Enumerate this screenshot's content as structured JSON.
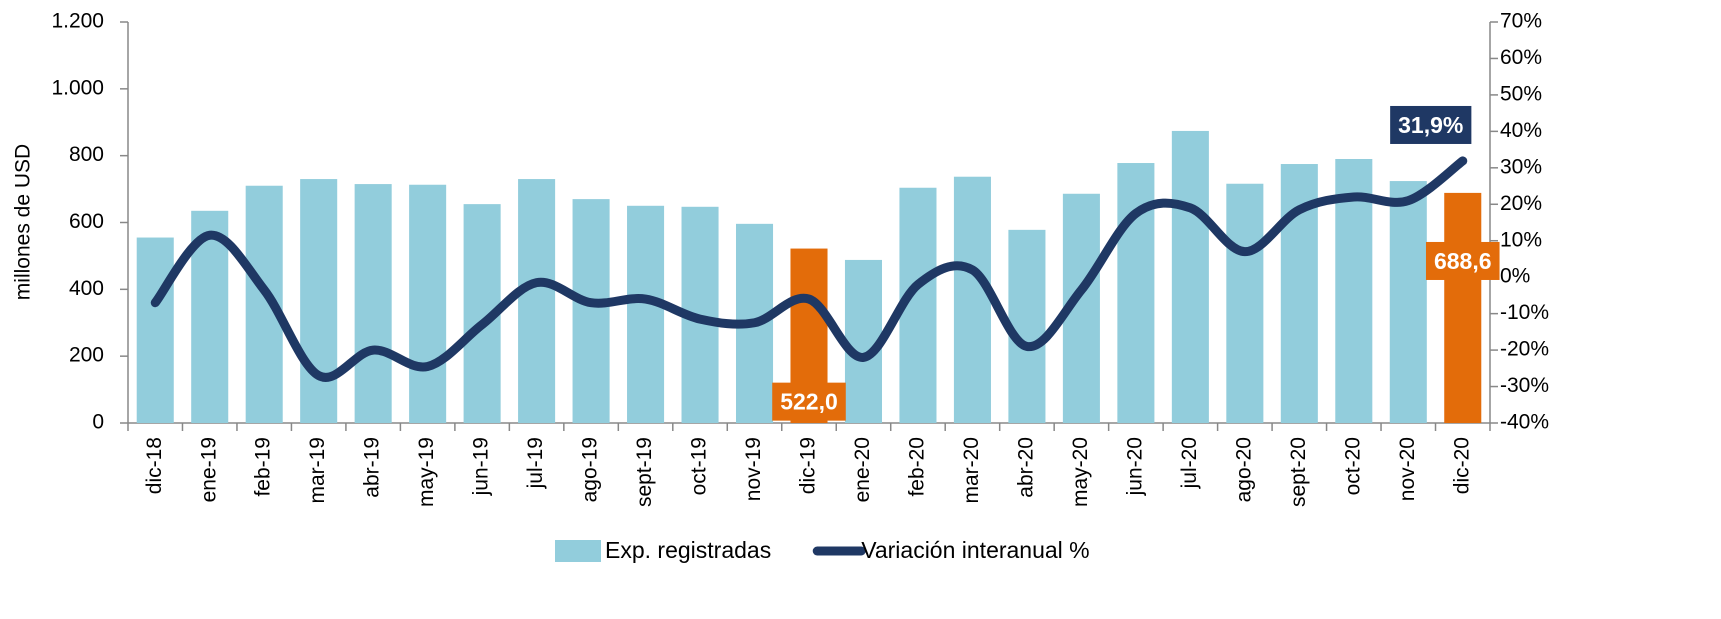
{
  "chart_data": {
    "type": "bar_line",
    "y_label": "millones de USD",
    "categories": [
      "dic-18",
      "ene-19",
      "feb-19",
      "mar-19",
      "abr-19",
      "may-19",
      "jun-19",
      "jul-19",
      "ago-19",
      "sept-19",
      "oct-19",
      "nov-19",
      "dic-19",
      "ene-20",
      "feb-20",
      "mar-20",
      "abr-20",
      "may-20",
      "jun-20",
      "jul-20",
      "ago-20",
      "sept-20",
      "oct-20",
      "nov-20",
      "dic-20"
    ],
    "ylim": [
      0,
      1200
    ],
    "yticks": [
      0,
      200,
      400,
      600,
      800,
      {
        "value": 1000,
        "label": "1.000"
      },
      {
        "value": 1200,
        "label": "1.200"
      }
    ],
    "y2lim": [
      -40,
      70
    ],
    "y2ticks": [
      {
        "value": -40,
        "label": "-40%"
      },
      {
        "value": -30,
        "label": "-30%"
      },
      {
        "value": -20,
        "label": "-20%"
      },
      {
        "value": -10,
        "label": "-10%"
      },
      {
        "value": 0,
        "label": "0%"
      },
      {
        "value": 10,
        "label": "10%"
      },
      {
        "value": 20,
        "label": "20%"
      },
      {
        "value": 30,
        "label": "30%"
      },
      {
        "value": 40,
        "label": "40%"
      },
      {
        "value": 50,
        "label": "50%"
      },
      {
        "value": 60,
        "label": "60%"
      },
      {
        "value": 70,
        "label": "70%"
      }
    ],
    "series": [
      {
        "name": "Exp. registradas",
        "type": "bar",
        "color": "#92cddc",
        "colors": [
          "#92cddc",
          "#92cddc",
          "#92cddc",
          "#92cddc",
          "#92cddc",
          "#92cddc",
          "#92cddc",
          "#92cddc",
          "#92cddc",
          "#92cddc",
          "#92cddc",
          "#92cddc",
          "#e36c0a",
          "#92cddc",
          "#92cddc",
          "#92cddc",
          "#92cddc",
          "#92cddc",
          "#92cddc",
          "#92cddc",
          "#92cddc",
          "#92cddc",
          "#92cddc",
          "#92cddc",
          "#e36c0a"
        ],
        "values": [
          555,
          635,
          710,
          730,
          715,
          713,
          655,
          730,
          670,
          650,
          647,
          596,
          522,
          488,
          704,
          737,
          578,
          686,
          778,
          874,
          716,
          775,
          790,
          724,
          688.6
        ],
        "value_labels": [
          null,
          null,
          null,
          null,
          null,
          null,
          null,
          null,
          null,
          null,
          null,
          null,
          "522,0",
          null,
          null,
          null,
          null,
          null,
          null,
          null,
          null,
          null,
          null,
          null,
          "688,6"
        ]
      },
      {
        "name": "Variación interanual %",
        "type": "line",
        "axis": "y2",
        "color": "#1f3864",
        "values": [
          -7,
          11.5,
          -3.5,
          -27,
          -20,
          -24.5,
          -13,
          -1.5,
          -7,
          -6,
          -11.5,
          -12.5,
          -6,
          -22,
          -2,
          2,
          -19,
          -3.5,
          17.5,
          19,
          7,
          18.5,
          22,
          21,
          31.9
        ],
        "value_labels": [
          null,
          null,
          null,
          null,
          null,
          null,
          null,
          null,
          null,
          null,
          null,
          null,
          null,
          null,
          null,
          null,
          null,
          null,
          null,
          null,
          null,
          null,
          null,
          null,
          "31,9%"
        ]
      }
    ]
  }
}
